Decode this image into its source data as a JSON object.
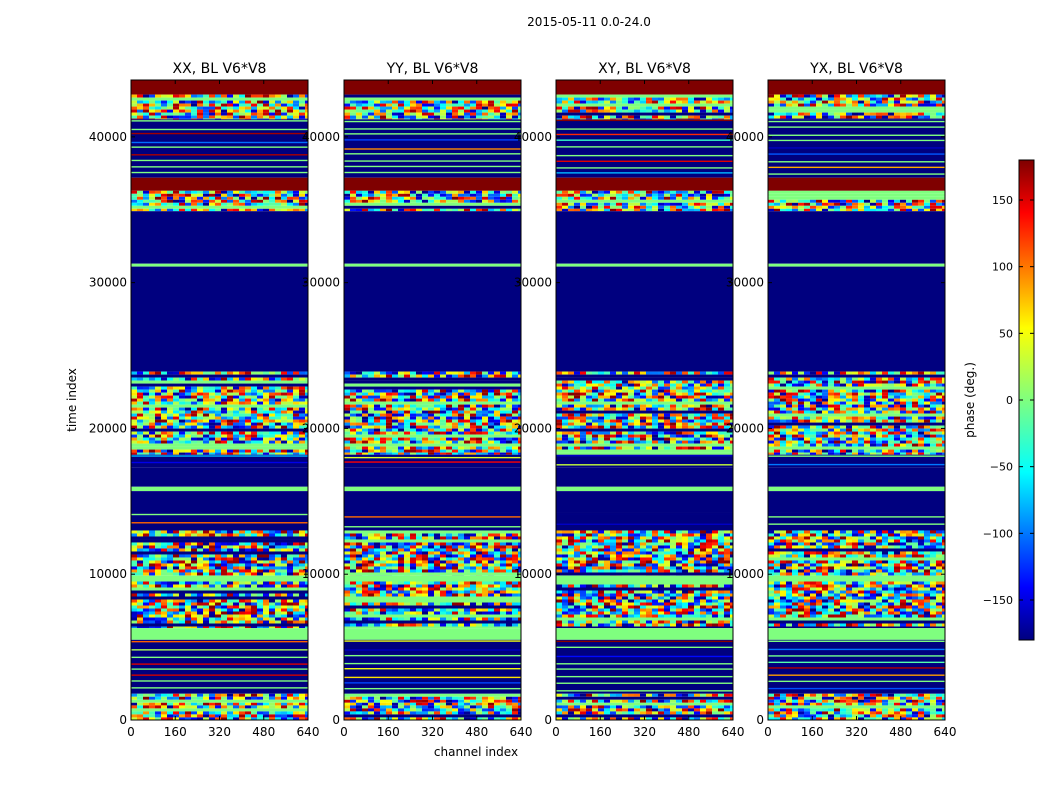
{
  "chart_data": {
    "type": "heatmap",
    "suptitle": "2015-05-11 0.0-24.0",
    "xlabel": "channel index",
    "ylabel": "time index",
    "xlim": [
      0,
      640
    ],
    "ylim": [
      0,
      43900
    ],
    "xticks": [
      0,
      160,
      320,
      480,
      640
    ],
    "yticks": [
      0,
      10000,
      20000,
      30000,
      40000
    ],
    "colorbar": {
      "label": "phase (deg.)",
      "range": [
        -180,
        180
      ],
      "ticks": [
        -150,
        -100,
        -50,
        0,
        50,
        100,
        150
      ],
      "ticklabels": [
        "−150",
        "−100",
        "−50",
        "0",
        "50",
        "100",
        "150"
      ],
      "colormap": "jet",
      "colors": [
        "#00007f",
        "#0000ff",
        "#00ffff",
        "#7fff7f",
        "#ffff00",
        "#ff0000",
        "#7f0000"
      ]
    },
    "panels": [
      {
        "title": "XX, BL V6*V8",
        "polarization": "XX"
      },
      {
        "title": "YY, BL V6*V8",
        "polarization": "YY"
      },
      {
        "title": "XY, BL V6*V8",
        "polarization": "XY"
      },
      {
        "title": "YX, BL V6*V8",
        "polarization": "YX"
      }
    ],
    "bands": [
      {
        "from": 42900,
        "to": 43900,
        "kind": "fill",
        "value": 180
      },
      {
        "from": 41200,
        "to": 42900,
        "kind": "noise"
      },
      {
        "from": 37200,
        "to": 41200,
        "kind": "sparse"
      },
      {
        "from": 36300,
        "to": 37200,
        "kind": "fill",
        "value": 180
      },
      {
        "from": 34900,
        "to": 36300,
        "kind": "noise"
      },
      {
        "from": 31300,
        "to": 34900,
        "kind": "fill",
        "value": -180
      },
      {
        "from": 31100,
        "to": 31300,
        "kind": "fill",
        "value": 0
      },
      {
        "from": 23900,
        "to": 31100,
        "kind": "fill",
        "value": -180
      },
      {
        "from": 18200,
        "to": 23900,
        "kind": "noise"
      },
      {
        "from": 17300,
        "to": 18200,
        "kind": "sparse"
      },
      {
        "from": 16000,
        "to": 17300,
        "kind": "fill",
        "value": -180
      },
      {
        "from": 15700,
        "to": 16000,
        "kind": "fill",
        "value": 0
      },
      {
        "from": 14200,
        "to": 15700,
        "kind": "fill",
        "value": -180
      },
      {
        "from": 13000,
        "to": 14200,
        "kind": "sparse"
      },
      {
        "from": 9900,
        "to": 13000,
        "kind": "noise"
      },
      {
        "from": 9500,
        "to": 9900,
        "kind": "fill",
        "value": 0
      },
      {
        "from": 6300,
        "to": 9500,
        "kind": "noise"
      },
      {
        "from": 5500,
        "to": 6300,
        "kind": "fill",
        "value": 0
      },
      {
        "from": 1800,
        "to": 5500,
        "kind": "sparse"
      },
      {
        "from": 1000,
        "to": 1800,
        "kind": "noise"
      },
      {
        "from": 0,
        "to": 1000,
        "kind": "noise"
      }
    ]
  }
}
